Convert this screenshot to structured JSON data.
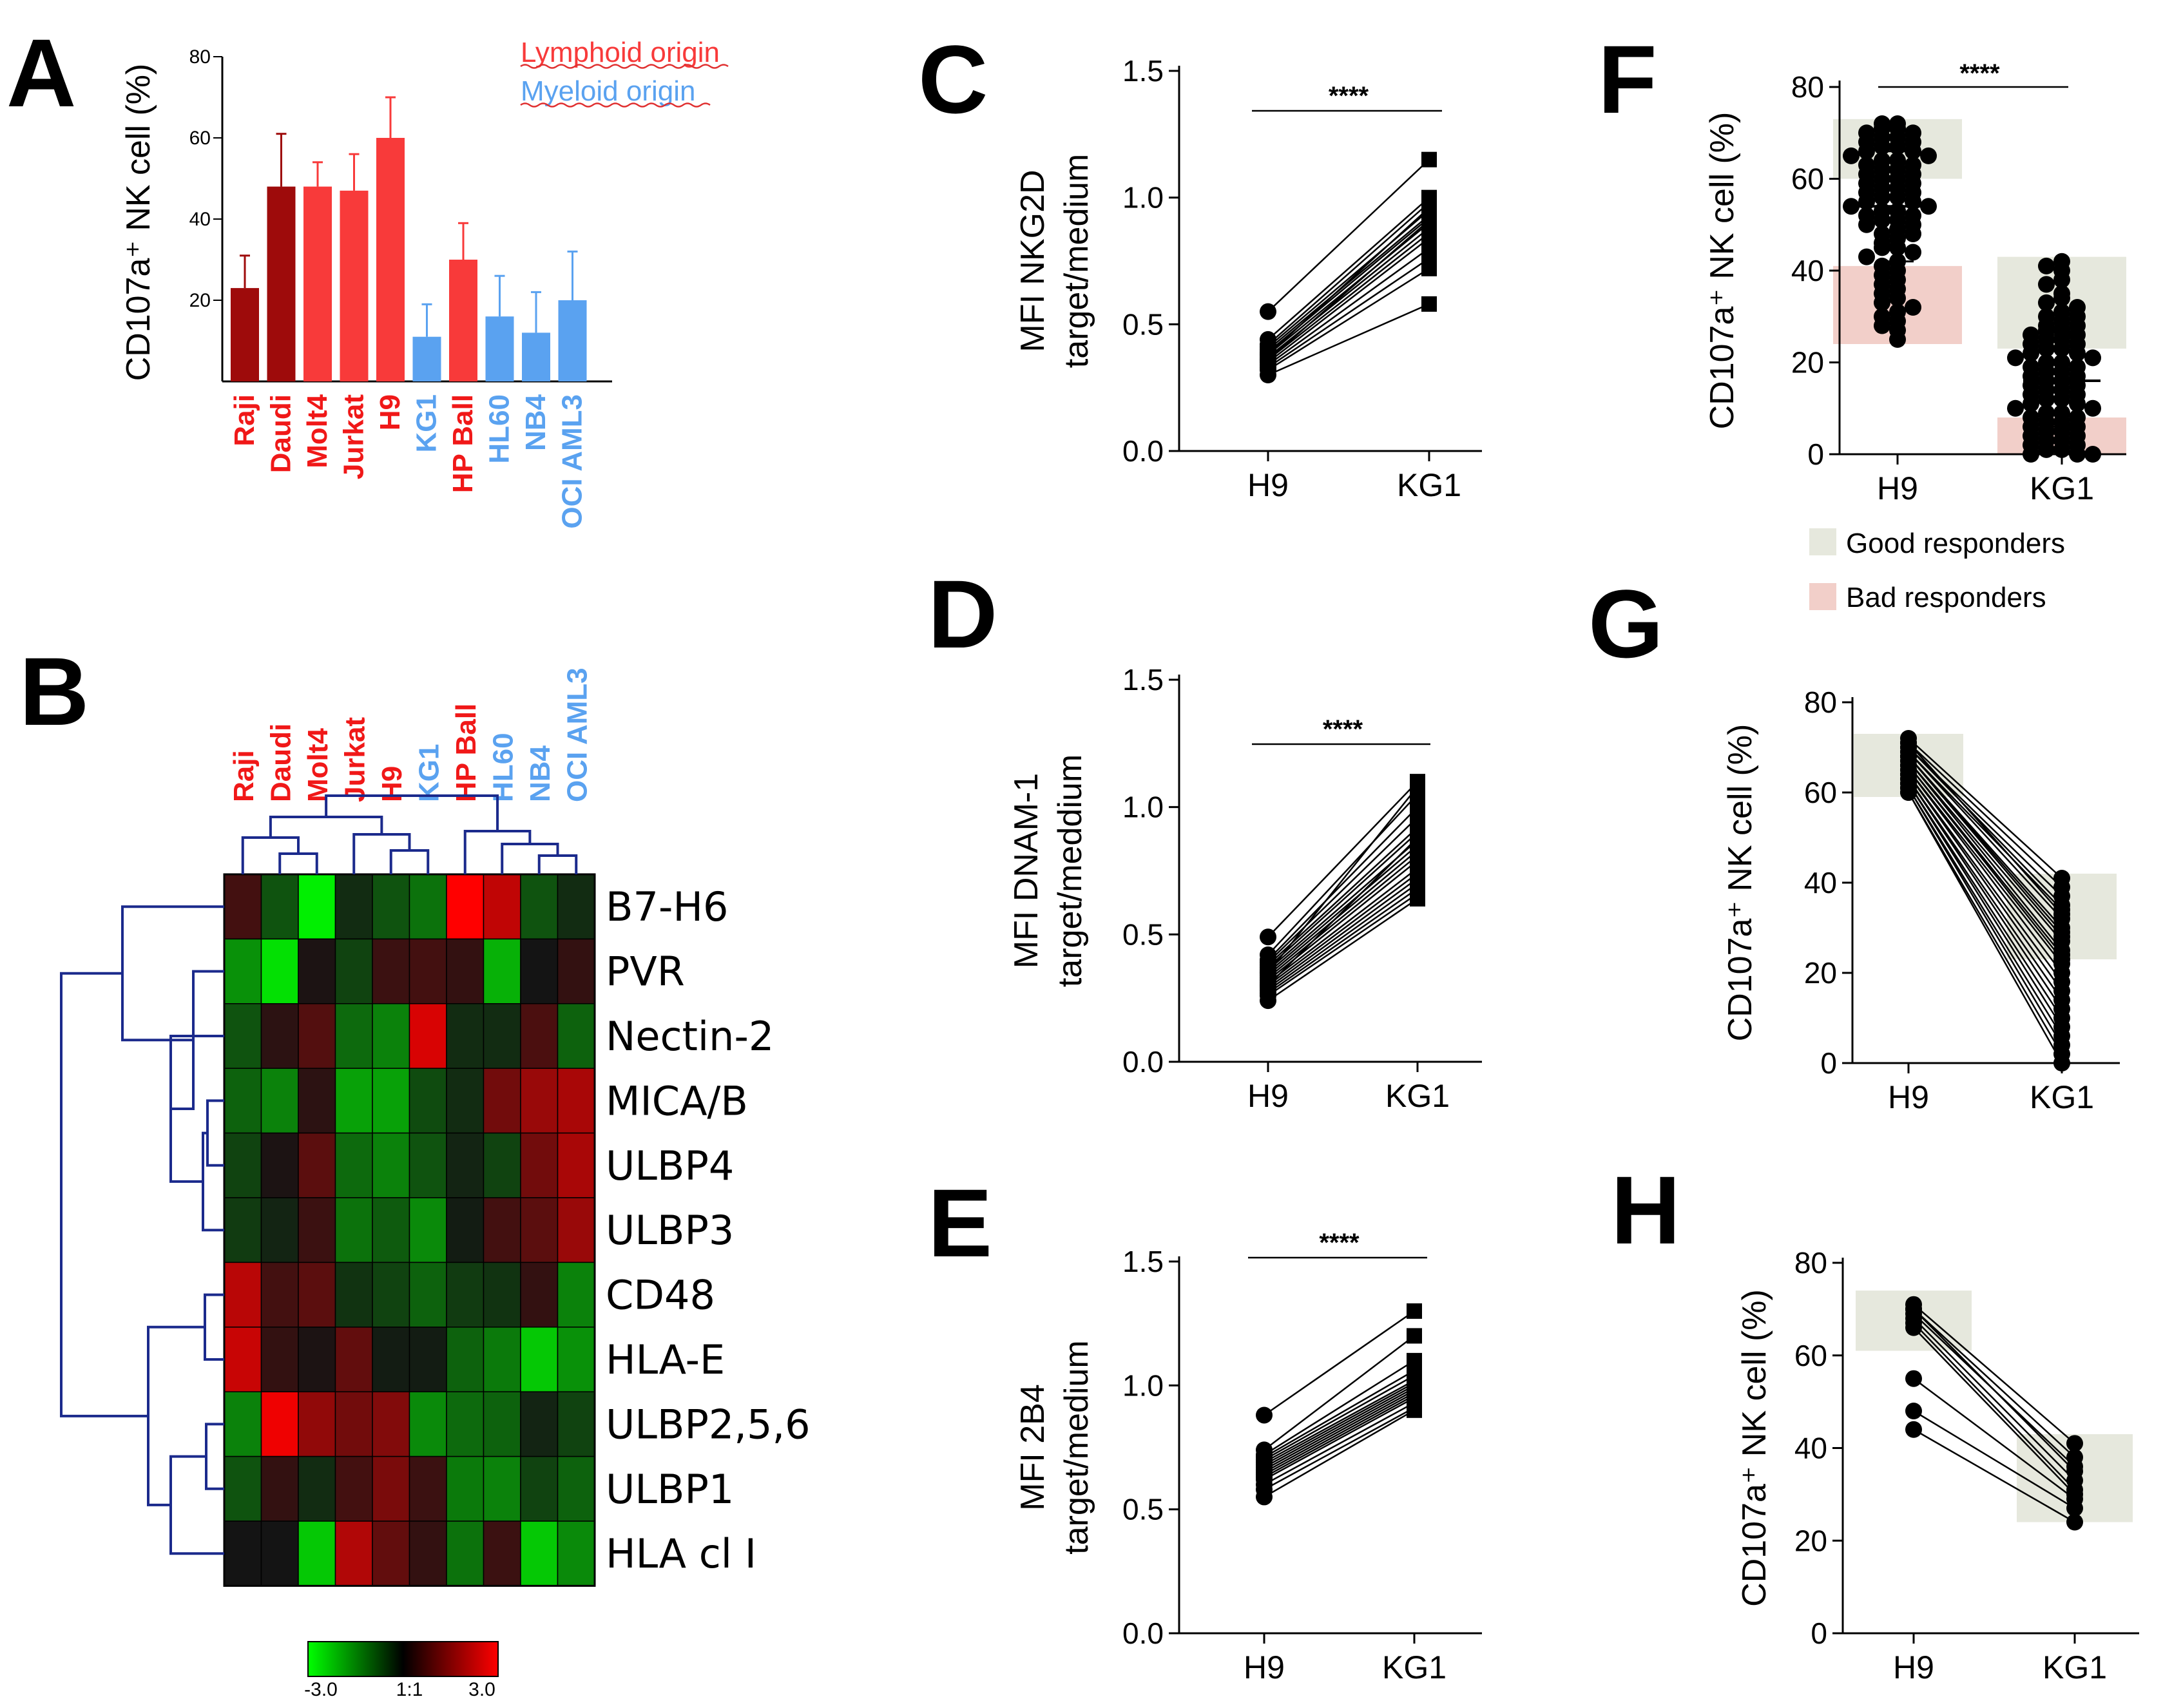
{
  "panel_labels": [
    "A",
    "B",
    "C",
    "D",
    "E",
    "F",
    "G",
    "H"
  ],
  "colors": {
    "lymphoid": "#f83a3a",
    "lymphoid_dark": "#9e0b0b",
    "myeloid": "#5aa2f0",
    "shade_good": "#e6e8dd",
    "shade_bad": "#f2cfc9",
    "dendro": "#1b2a8c"
  },
  "chart_data": [
    {
      "id": "A",
      "type": "bar",
      "title": "",
      "ylabel": "CD107a⁺ NK cell (%)",
      "ylim": [
        0,
        80
      ],
      "yticks": [
        "20",
        "40",
        "60",
        "80"
      ],
      "legend": [
        {
          "label": "Lymphoid origin",
          "group": "lymphoid"
        },
        {
          "label": "Myeloid origin",
          "group": "myeloid"
        }
      ],
      "categories": [
        "Raji",
        "Daudi",
        "Molt4",
        "Jurkat",
        "H9",
        "KG1",
        "HP Ball",
        "HL60",
        "NB4",
        "OCI AML3"
      ],
      "groups": [
        "lymphoid_dark",
        "lymphoid_dark",
        "lymphoid",
        "lymphoid",
        "lymphoid",
        "myeloid",
        "lymphoid",
        "myeloid",
        "myeloid",
        "myeloid"
      ],
      "values": [
        23,
        48,
        48,
        47,
        60,
        11,
        30,
        16,
        12,
        20
      ],
      "errors": [
        8,
        13,
        6,
        9,
        10,
        8,
        9,
        10,
        10,
        12
      ]
    },
    {
      "id": "B",
      "type": "heatmap",
      "columns": [
        "Raji",
        "Daudi",
        "Molt4",
        "Jurkat",
        "H9",
        "KG1",
        "HP Ball",
        "HL60",
        "NB4",
        "OCI AML3"
      ],
      "column_groups": [
        "lymphoid",
        "lymphoid",
        "lymphoid",
        "lymphoid",
        "lymphoid",
        "myeloid",
        "lymphoid",
        "myeloid",
        "myeloid",
        "myeloid"
      ],
      "rows": [
        "B7-H6",
        "PVR",
        "Nectin-2",
        "MICA/B",
        "ULBP4",
        "ULBP3",
        "CD48",
        "HLA-E",
        "ULBP2,5,6",
        "ULBP1",
        "HLA cl I"
      ],
      "values": [
        [
          0.6,
          -0.8,
          -2.8,
          -0.3,
          -0.8,
          -1.2,
          3.0,
          2.2,
          -0.8,
          -0.3
        ],
        [
          -1.6,
          -2.6,
          0.1,
          -0.6,
          0.5,
          0.6,
          0.4,
          -2.0,
          0.0,
          0.4
        ],
        [
          -0.8,
          0.3,
          0.8,
          -1.1,
          -1.4,
          2.5,
          -0.3,
          -0.3,
          0.7,
          -1.0
        ],
        [
          -1.0,
          -1.4,
          0.3,
          -1.8,
          -1.8,
          -0.7,
          -0.3,
          1.2,
          1.7,
          1.9
        ],
        [
          -0.6,
          0.1,
          0.9,
          -1.1,
          -1.4,
          -0.8,
          -0.2,
          -0.6,
          1.2,
          1.9
        ],
        [
          -0.5,
          -0.2,
          0.5,
          -1.2,
          -0.9,
          -1.5,
          -0.1,
          0.6,
          0.9,
          1.7
        ],
        [
          2.1,
          0.6,
          0.9,
          -0.4,
          -0.6,
          -1.0,
          -0.5,
          -0.4,
          0.4,
          -1.4
        ],
        [
          2.3,
          0.4,
          0.1,
          1.0,
          -0.1,
          -0.1,
          -1.0,
          -1.3,
          -2.3,
          -1.6
        ],
        [
          -1.4,
          2.8,
          1.6,
          1.2,
          1.4,
          -1.5,
          -1.1,
          -1.0,
          -0.2,
          -0.6
        ],
        [
          -0.8,
          0.4,
          -0.3,
          0.6,
          1.3,
          0.5,
          -1.3,
          -1.4,
          -0.6,
          -1.0
        ],
        [
          0.0,
          0.0,
          -2.3,
          2.0,
          1.0,
          0.4,
          -1.2,
          0.5,
          -2.3,
          -1.5
        ]
      ],
      "scale_labels": [
        "-3.0",
        "1:1",
        "3.0"
      ]
    },
    {
      "id": "C",
      "type": "line",
      "ylabel_lines": [
        "MFI NKG2D",
        "target/medium"
      ],
      "ylim": [
        0,
        1.5
      ],
      "yticks": [
        "0.0",
        "0.5",
        "1.0",
        "1.5"
      ],
      "categories": [
        "H9",
        "KG1"
      ],
      "significance": "****",
      "pairs": [
        [
          0.55,
          1.15
        ],
        [
          0.44,
          1.0
        ],
        [
          0.42,
          0.98
        ],
        [
          0.41,
          0.95
        ],
        [
          0.4,
          0.93
        ],
        [
          0.39,
          0.92
        ],
        [
          0.38,
          0.9
        ],
        [
          0.37,
          0.88
        ],
        [
          0.36,
          0.86
        ],
        [
          0.35,
          0.84
        ],
        [
          0.34,
          0.8
        ],
        [
          0.33,
          0.76
        ],
        [
          0.32,
          0.72
        ],
        [
          0.3,
          0.58
        ],
        [
          0.38,
          0.96
        ],
        [
          0.36,
          0.91
        ]
      ]
    },
    {
      "id": "D",
      "type": "line",
      "ylabel_lines": [
        "MFI DNAM-1",
        "target/meddium"
      ],
      "ylim": [
        0,
        1.5
      ],
      "yticks": [
        "0.0",
        "0.5",
        "1.0",
        "1.5"
      ],
      "categories": [
        "H9",
        "KG1"
      ],
      "significance": "****",
      "pairs": [
        [
          0.49,
          1.1
        ],
        [
          0.42,
          1.05
        ],
        [
          0.4,
          1.0
        ],
        [
          0.39,
          0.96
        ],
        [
          0.38,
          0.92
        ],
        [
          0.37,
          0.9
        ],
        [
          0.36,
          0.87
        ],
        [
          0.35,
          0.85
        ],
        [
          0.34,
          0.83
        ],
        [
          0.33,
          0.81
        ],
        [
          0.32,
          0.79
        ],
        [
          0.31,
          0.76
        ],
        [
          0.3,
          0.74
        ],
        [
          0.29,
          0.72
        ],
        [
          0.28,
          0.7
        ],
        [
          0.27,
          0.68
        ],
        [
          0.26,
          0.66
        ],
        [
          0.24,
          0.64
        ],
        [
          0.35,
          1.08
        ],
        [
          0.3,
          0.88
        ]
      ]
    },
    {
      "id": "E",
      "type": "line",
      "ylabel_lines": [
        "MFI 2B4",
        "target/medium"
      ],
      "ylim": [
        0,
        1.5
      ],
      "yticks": [
        "0.0",
        "0.5",
        "1.0",
        "1.5"
      ],
      "categories": [
        "H9",
        "KG1"
      ],
      "significance": "****",
      "pairs": [
        [
          0.88,
          1.3
        ],
        [
          0.74,
          1.2
        ],
        [
          0.72,
          1.1
        ],
        [
          0.71,
          1.06
        ],
        [
          0.7,
          1.04
        ],
        [
          0.69,
          1.02
        ],
        [
          0.68,
          1.01
        ],
        [
          0.67,
          1.0
        ],
        [
          0.66,
          0.99
        ],
        [
          0.65,
          0.98
        ],
        [
          0.64,
          0.97
        ],
        [
          0.63,
          0.96
        ],
        [
          0.62,
          0.95
        ],
        [
          0.6,
          0.93
        ],
        [
          0.58,
          0.91
        ],
        [
          0.55,
          0.9
        ]
      ]
    },
    {
      "id": "F",
      "type": "scatter",
      "ylabel": "CD107a⁺ NK cell (%)",
      "ylim": [
        0,
        80
      ],
      "yticks": [
        "0",
        "20",
        "40",
        "60",
        "80"
      ],
      "categories": [
        "H9",
        "KG1"
      ],
      "significance": "****",
      "means": [
        54,
        16
      ],
      "sd": [
        12,
        10
      ],
      "shade_good": [
        [
          60,
          73
        ],
        [
          23,
          43
        ]
      ],
      "shade_bad": [
        [
          24,
          41
        ],
        [
          0,
          8
        ]
      ],
      "points_H9": [
        72,
        72,
        71,
        71,
        70,
        70,
        69,
        69,
        68,
        68,
        67,
        67,
        66,
        66,
        65,
        65,
        64,
        64,
        63,
        63,
        62,
        62,
        61,
        61,
        60,
        60,
        59,
        59,
        58,
        58,
        57,
        57,
        56,
        56,
        55,
        55,
        54,
        54,
        53,
        53,
        52,
        52,
        51,
        51,
        50,
        50,
        49,
        48,
        48,
        47,
        46,
        45,
        45,
        44,
        43,
        42,
        41,
        40,
        39,
        38,
        37,
        36,
        35,
        34,
        33,
        32,
        31,
        30,
        29,
        28,
        27,
        25
      ],
      "points_KG1": [
        42,
        41,
        40,
        38,
        37,
        35,
        34,
        33,
        32,
        31,
        30,
        30,
        29,
        28,
        28,
        27,
        27,
        26,
        26,
        25,
        25,
        24,
        24,
        23,
        23,
        22,
        22,
        21,
        21,
        20,
        20,
        19,
        19,
        18,
        18,
        17,
        17,
        16,
        16,
        15,
        15,
        14,
        14,
        13,
        13,
        12,
        12,
        11,
        11,
        10,
        10,
        9,
        9,
        8,
        8,
        7,
        7,
        6,
        6,
        5,
        5,
        4,
        4,
        3,
        3,
        2,
        2,
        1,
        1,
        0,
        0,
        0
      ],
      "legend": [
        {
          "label": "Good responders",
          "shade": "good"
        },
        {
          "label": "Bad responders",
          "shade": "bad"
        }
      ]
    },
    {
      "id": "G",
      "type": "line",
      "ylabel": "CD107a⁺ NK cell (%)",
      "ylim": [
        0,
        80
      ],
      "yticks": [
        "0",
        "20",
        "40",
        "60",
        "80"
      ],
      "categories": [
        "H9",
        "KG1"
      ],
      "shade": [
        [
          59,
          73
        ],
        [
          23,
          42
        ]
      ],
      "pairs": [
        [
          72,
          41
        ],
        [
          71,
          39
        ],
        [
          70,
          37
        ],
        [
          70,
          35
        ],
        [
          69,
          34
        ],
        [
          69,
          32
        ],
        [
          68,
          30
        ],
        [
          68,
          29
        ],
        [
          67,
          27
        ],
        [
          67,
          25
        ],
        [
          66,
          24
        ],
        [
          66,
          23
        ],
        [
          65,
          22
        ],
        [
          65,
          20
        ],
        [
          64,
          18
        ],
        [
          64,
          16
        ],
        [
          63,
          14
        ],
        [
          63,
          12
        ],
        [
          62,
          10
        ],
        [
          62,
          8
        ],
        [
          61,
          6
        ],
        [
          61,
          4
        ],
        [
          60,
          2
        ],
        [
          60,
          0
        ],
        [
          71,
          33
        ],
        [
          68,
          28
        ]
      ]
    },
    {
      "id": "H",
      "type": "line",
      "ylabel": "CD107a⁺ NK cell (%)",
      "ylim": [
        0,
        80
      ],
      "yticks": [
        "0",
        "20",
        "40",
        "60",
        "80"
      ],
      "categories": [
        "H9",
        "KG1"
      ],
      "shade": [
        [
          61,
          74
        ],
        [
          24,
          43
        ]
      ],
      "pairs": [
        [
          71,
          41
        ],
        [
          70,
          38
        ],
        [
          69,
          36
        ],
        [
          68,
          33
        ],
        [
          67,
          31
        ],
        [
          66,
          30
        ],
        [
          55,
          29
        ],
        [
          48,
          27
        ],
        [
          44,
          24
        ],
        [
          70,
          35
        ]
      ]
    }
  ]
}
